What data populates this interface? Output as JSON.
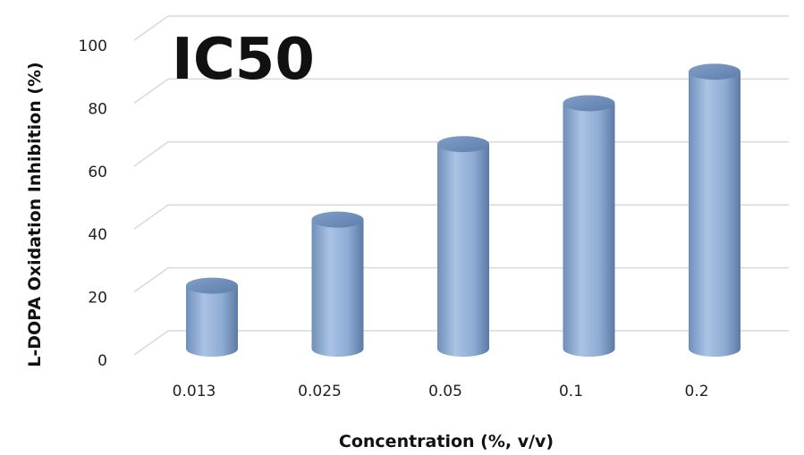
{
  "chart_data": {
    "type": "bar",
    "style": "3d-cylinder",
    "title": "IC50",
    "xlabel": "Concentration (%, v/v)",
    "ylabel": "L-DOPA Oxidation Inhibition (%)",
    "categories": [
      "0.013",
      "0.025",
      "0.05",
      "0.1",
      "0.2"
    ],
    "values": [
      20,
      41,
      65,
      78,
      88
    ],
    "ylim": [
      0,
      100
    ],
    "yticks": [
      "0",
      "20",
      "40",
      "60",
      "80",
      "100"
    ],
    "grid": true,
    "legend": "none",
    "colors": {
      "bar": "#95b3d7",
      "bar_dark": "#5a7ba5",
      "grid": "#d9d9d9"
    }
  }
}
